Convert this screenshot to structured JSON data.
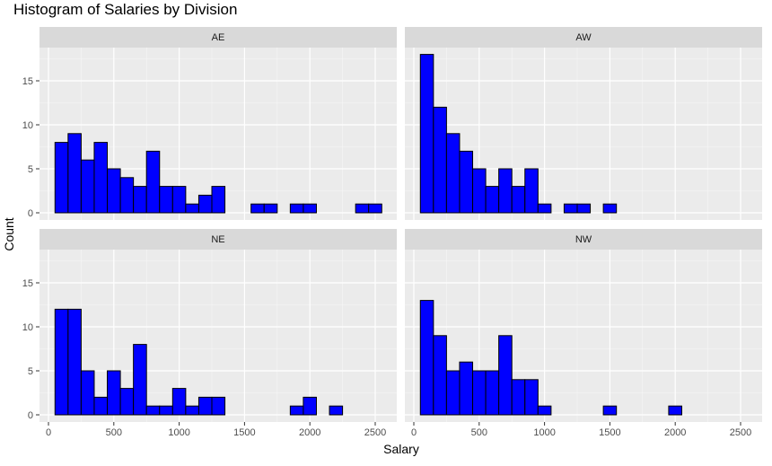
{
  "chart_data": {
    "type": "bar",
    "title": "Histogram of Salaries by Division",
    "xlabel": "Salary",
    "ylabel": "Count",
    "xlim": [
      0,
      2500
    ],
    "ylim": [
      0,
      18
    ],
    "x_ticks": [
      "0",
      "500",
      "1000",
      "1500",
      "2000",
      "2500"
    ],
    "y_ticks": [
      "0",
      "5",
      "10",
      "15"
    ],
    "bin_width": 100,
    "bin_starts": [
      50,
      150,
      250,
      350,
      450,
      550,
      650,
      750,
      850,
      950,
      1050,
      1150,
      1250,
      1350,
      1450,
      1550,
      1650,
      1750,
      1850,
      1950,
      2050,
      2150,
      2250,
      2350,
      2450
    ],
    "fill_color": "#0000ff",
    "border_color": "#000000",
    "panel_background": "#ebebeb",
    "strip_background": "#d9d9d9",
    "grid": true,
    "facets": [
      {
        "name": "AE",
        "values": [
          8,
          9,
          6,
          8,
          5,
          4,
          3,
          7,
          3,
          3,
          1,
          2,
          3,
          0,
          0,
          1,
          1,
          0,
          1,
          1,
          0,
          0,
          0,
          1,
          1
        ]
      },
      {
        "name": "AW",
        "values": [
          18,
          12,
          9,
          7,
          5,
          3,
          5,
          3,
          5,
          1,
          0,
          1,
          1,
          0,
          1,
          0,
          0,
          0,
          0,
          0,
          0,
          0,
          0,
          0,
          0
        ]
      },
      {
        "name": "NE",
        "values": [
          12,
          12,
          5,
          2,
          5,
          3,
          8,
          1,
          1,
          3,
          1,
          2,
          2,
          0,
          0,
          0,
          0,
          0,
          1,
          2,
          0,
          1,
          0,
          0,
          0
        ]
      },
      {
        "name": "NW",
        "values": [
          13,
          9,
          5,
          6,
          5,
          5,
          9,
          4,
          4,
          1,
          0,
          0,
          0,
          0,
          1,
          0,
          0,
          0,
          0,
          1,
          0,
          0,
          0,
          0,
          0
        ]
      }
    ]
  }
}
